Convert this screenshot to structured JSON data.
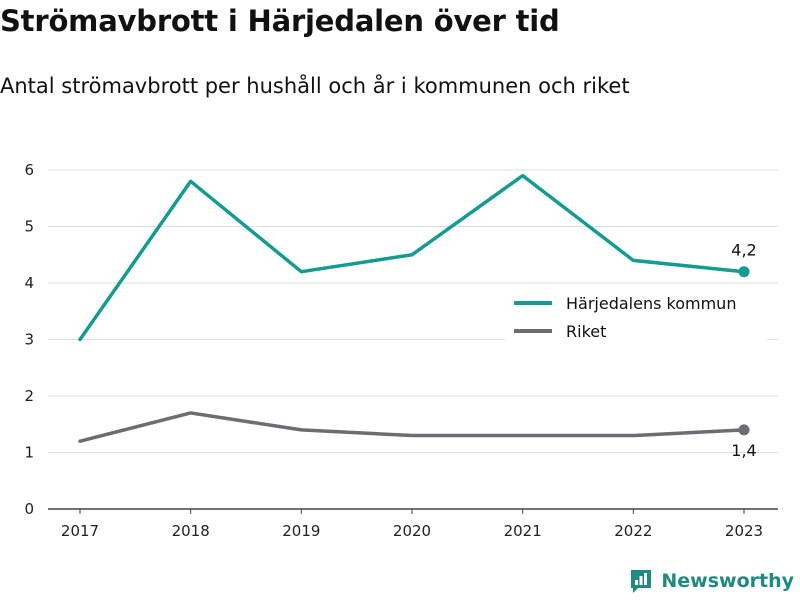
{
  "title": "Strömavbrott i Härjedalen över tid",
  "subtitle": "Antal strömavbrott per hushåll och år i kommunen och riket",
  "brand": {
    "name": "Newsworthy",
    "icon": "newsworthy-logo-icon"
  },
  "colors": {
    "kommun": "#149b92",
    "riket": "#6d6c72",
    "grid": "#dedede",
    "axis": "#444444"
  },
  "chart_data": {
    "type": "line",
    "title": "Strömavbrott i Härjedalen över tid",
    "subtitle": "Antal strömavbrott per hushåll och år i kommunen och riket",
    "x": [
      "2017",
      "2018",
      "2019",
      "2020",
      "2021",
      "2022",
      "2023"
    ],
    "ylim": [
      0,
      6
    ],
    "yticks": [
      "0",
      "1",
      "2",
      "3",
      "4",
      "5",
      "6"
    ],
    "grid": true,
    "legend": "right",
    "series": [
      {
        "name": "Härjedalens kommun",
        "values": [
          3.0,
          5.8,
          4.2,
          4.5,
          5.9,
          4.4,
          4.2
        ],
        "end_label": "4,2",
        "color": "#149b92"
      },
      {
        "name": "Riket",
        "values": [
          1.2,
          1.7,
          1.4,
          1.3,
          1.3,
          1.3,
          1.4
        ],
        "end_label": "1,4",
        "color": "#6d6c72"
      }
    ]
  }
}
